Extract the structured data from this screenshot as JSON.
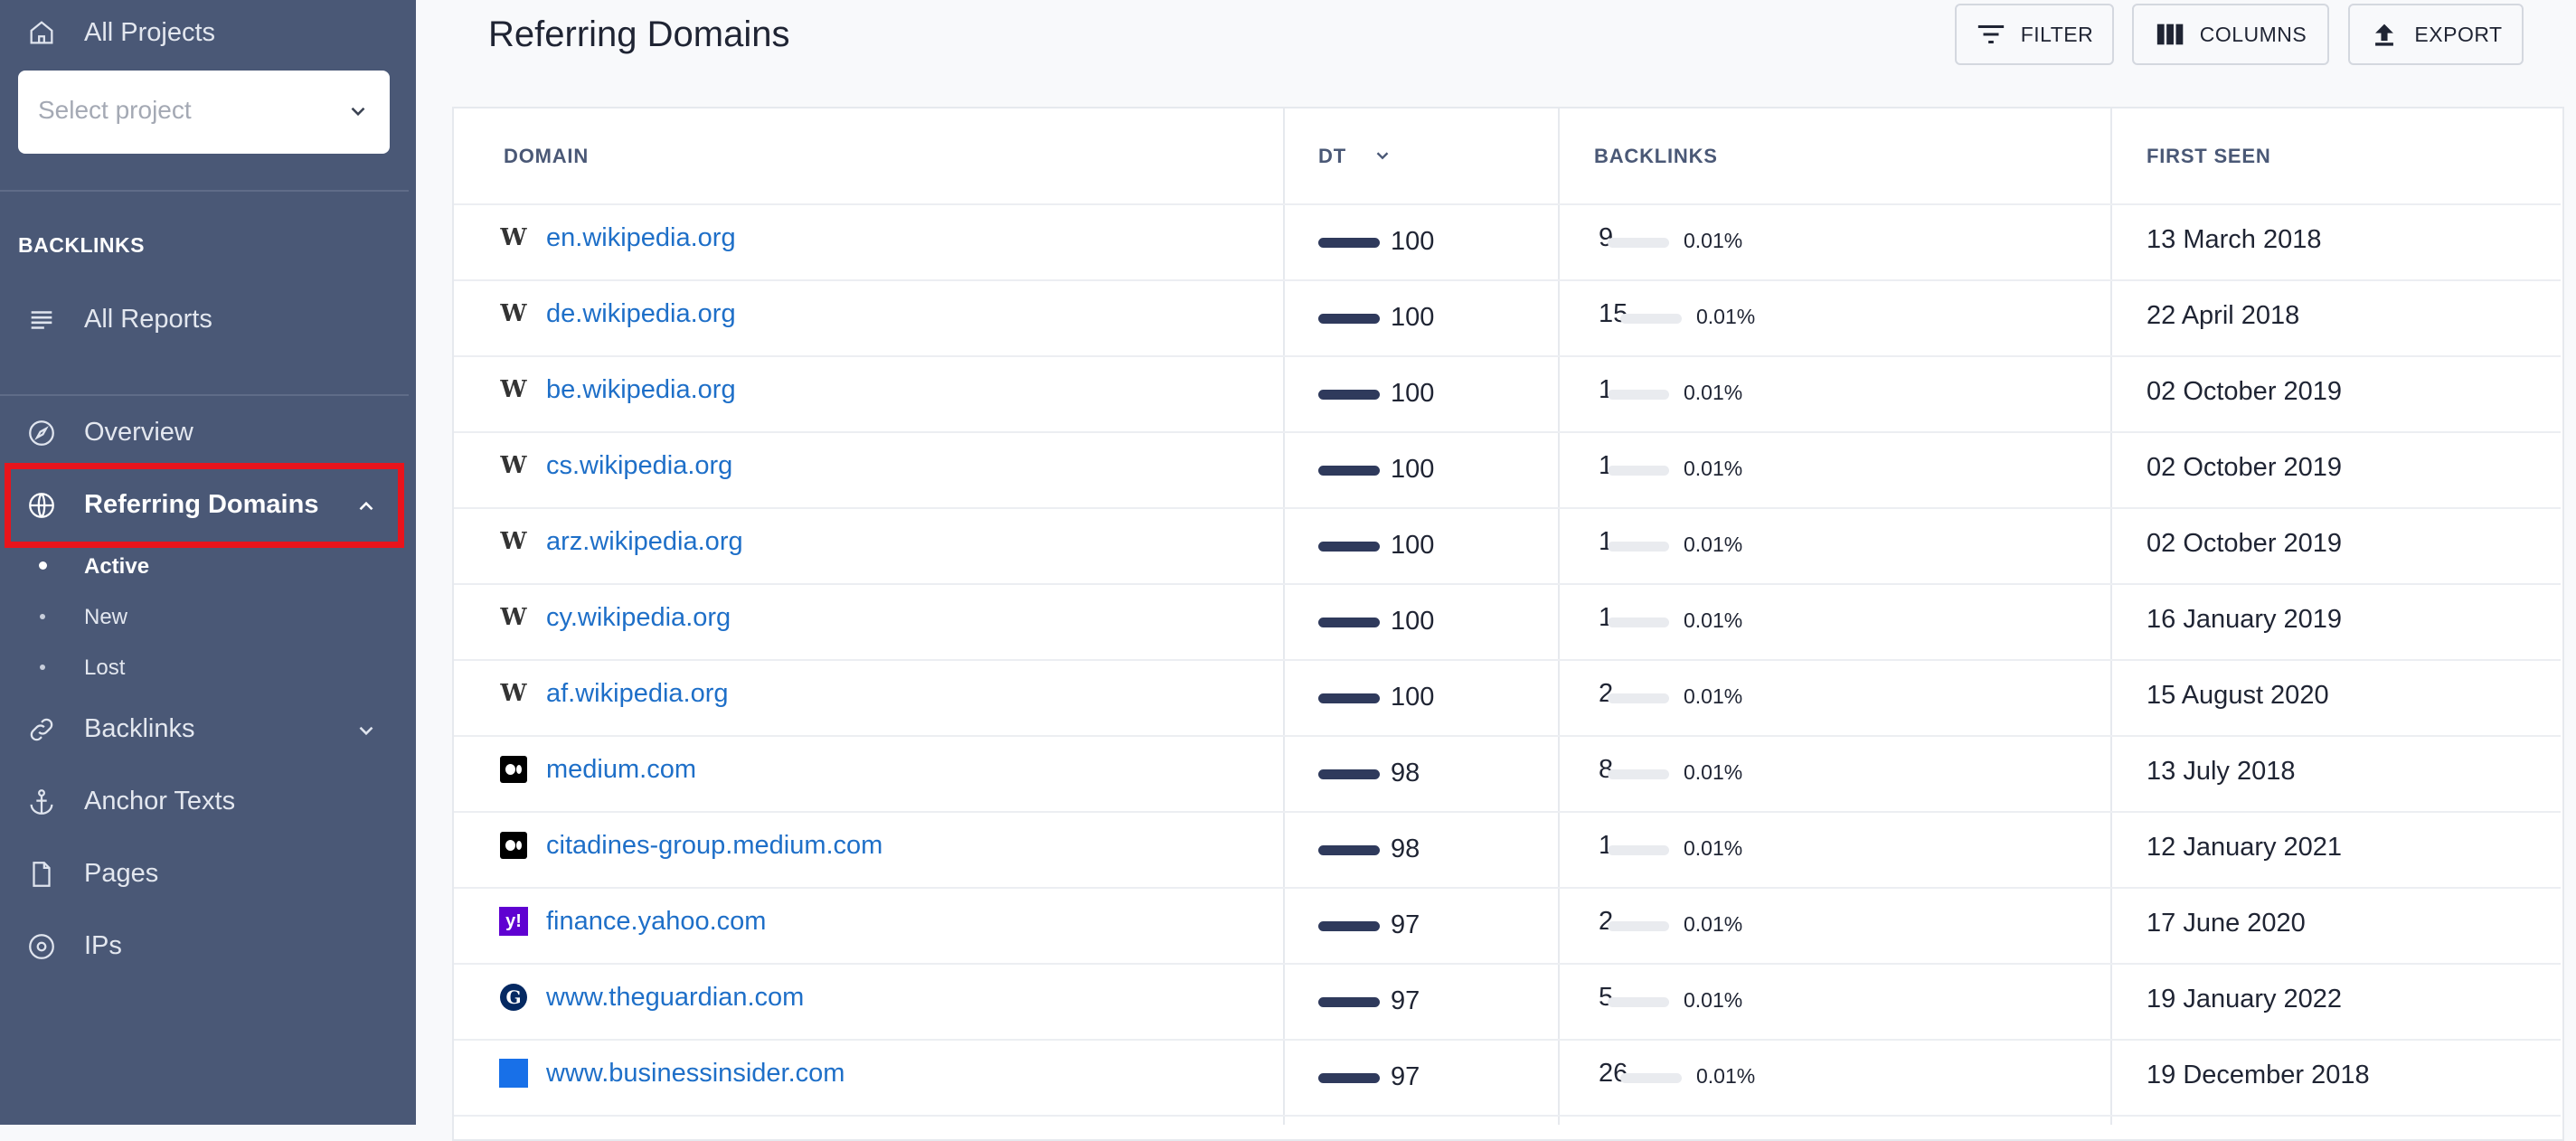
{
  "sidebar": {
    "all_projects": "All Projects",
    "select_placeholder": "Select project",
    "section_title": "BACKLINKS",
    "all_reports": "All Reports",
    "items": [
      {
        "label": "Overview",
        "icon": "compass-icon"
      },
      {
        "label": "Referring Domains",
        "icon": "globe-icon",
        "expanded": true
      },
      {
        "label": "Backlinks",
        "icon": "link-icon"
      },
      {
        "label": "Anchor Texts",
        "icon": "anchor-icon"
      },
      {
        "label": "Pages",
        "icon": "file-icon"
      },
      {
        "label": "IPs",
        "icon": "target-icon"
      }
    ],
    "sub_items": [
      {
        "label": "Active",
        "active": true
      },
      {
        "label": "New",
        "active": false
      },
      {
        "label": "Lost",
        "active": false
      }
    ]
  },
  "header": {
    "title": "Referring Domains",
    "filter_label": "FILTER",
    "columns_label": "COLUMNS",
    "export_label": "EXPORT"
  },
  "table": {
    "headers": {
      "domain": "DOMAIN",
      "dt": "DT",
      "backlinks": "BACKLINKS",
      "first_seen": "FIRST SEEN"
    },
    "rows": [
      {
        "favicon": "wikipedia-icon",
        "domain": "en.wikipedia.org",
        "dt": "100",
        "backlinks": "9",
        "pct": "0.01%",
        "first_seen": "13 March 2018"
      },
      {
        "favicon": "wikipedia-icon",
        "domain": "de.wikipedia.org",
        "dt": "100",
        "backlinks": "15",
        "pct": "0.01%",
        "first_seen": "22 April 2018"
      },
      {
        "favicon": "wikipedia-icon",
        "domain": "be.wikipedia.org",
        "dt": "100",
        "backlinks": "1",
        "pct": "0.01%",
        "first_seen": "02 October 2019"
      },
      {
        "favicon": "wikipedia-icon",
        "domain": "cs.wikipedia.org",
        "dt": "100",
        "backlinks": "1",
        "pct": "0.01%",
        "first_seen": "02 October 2019"
      },
      {
        "favicon": "wikipedia-icon",
        "domain": "arz.wikipedia.org",
        "dt": "100",
        "backlinks": "1",
        "pct": "0.01%",
        "first_seen": "02 October 2019"
      },
      {
        "favicon": "wikipedia-icon",
        "domain": "cy.wikipedia.org",
        "dt": "100",
        "backlinks": "1",
        "pct": "0.01%",
        "first_seen": "16 January 2019"
      },
      {
        "favicon": "wikipedia-icon",
        "domain": "af.wikipedia.org",
        "dt": "100",
        "backlinks": "2",
        "pct": "0.01%",
        "first_seen": "15 August 2020"
      },
      {
        "favicon": "medium-icon",
        "domain": "medium.com",
        "dt": "98",
        "backlinks": "8",
        "pct": "0.01%",
        "first_seen": "13 July 2018"
      },
      {
        "favicon": "medium-icon",
        "domain": "citadines-group.medium.com",
        "dt": "98",
        "backlinks": "1",
        "pct": "0.01%",
        "first_seen": "12 January 2021"
      },
      {
        "favicon": "yahoo-icon",
        "domain": "finance.yahoo.com",
        "dt": "97",
        "backlinks": "2",
        "pct": "0.01%",
        "first_seen": "17 June 2020"
      },
      {
        "favicon": "guardian-icon",
        "domain": "www.theguardian.com",
        "dt": "97",
        "backlinks": "5",
        "pct": "0.01%",
        "first_seen": "19 January 2022"
      },
      {
        "favicon": "businessinsider-icon",
        "domain": "www.businessinsider.com",
        "dt": "97",
        "backlinks": "26",
        "pct": "0.01%",
        "first_seen": "19 December 2018"
      }
    ]
  },
  "colors": {
    "sidebar_bg": "#4a5876",
    "link": "#1e6fc8",
    "highlight": "#e8141c",
    "dt_bar": "#2f3a5c"
  }
}
